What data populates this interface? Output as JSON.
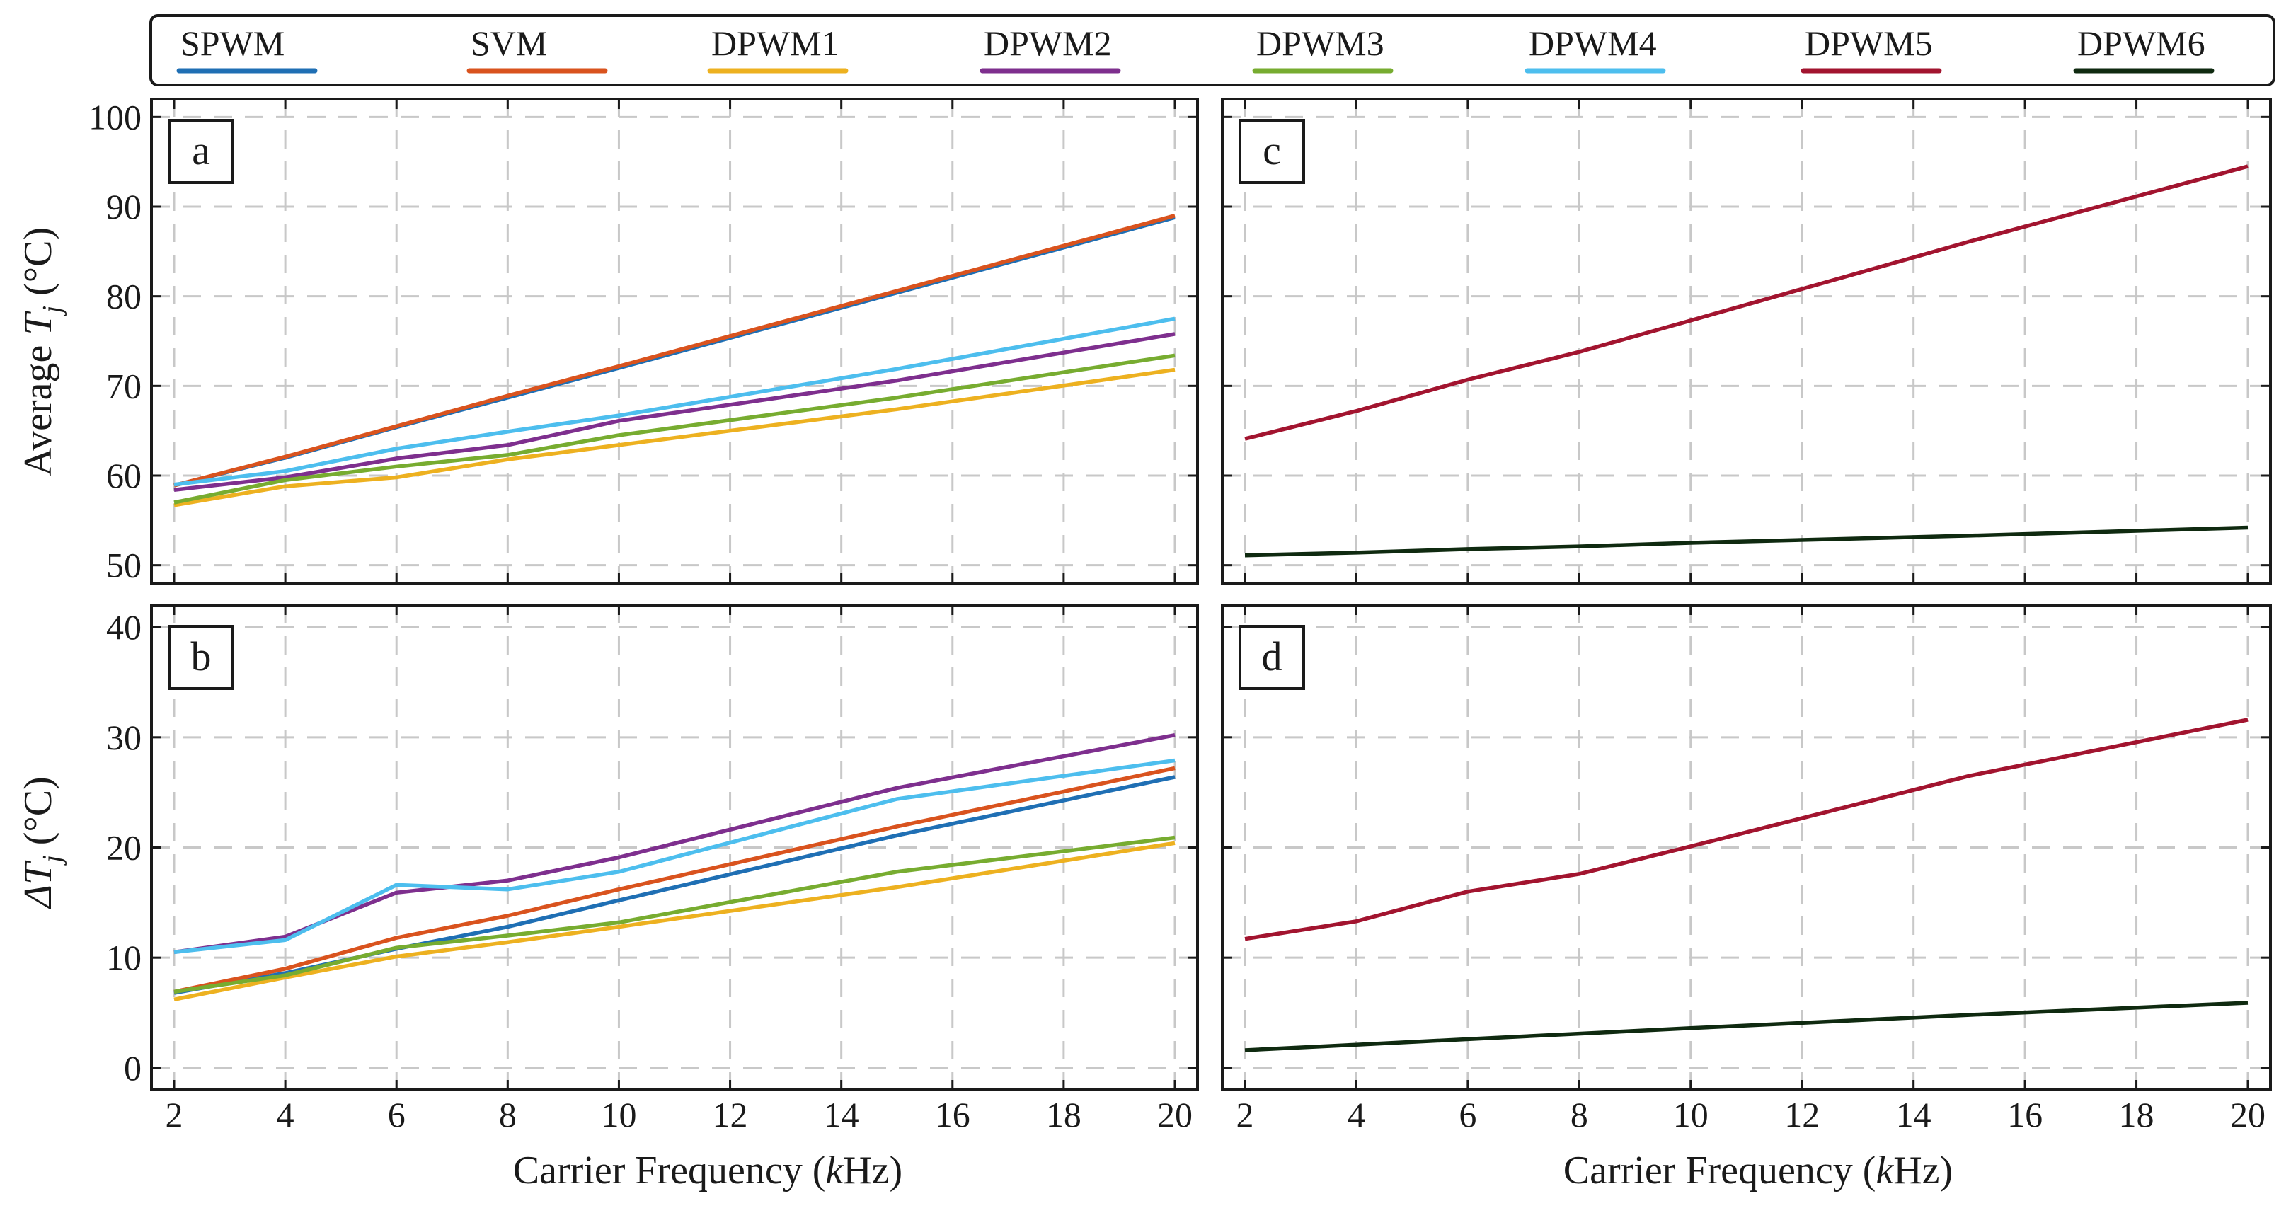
{
  "legend": [
    {
      "name": "SPWM",
      "color": "#1f6fb4"
    },
    {
      "name": "SVM",
      "color": "#d9531e"
    },
    {
      "name": "DPWM1",
      "color": "#edb120"
    },
    {
      "name": "DPWM2",
      "color": "#7e2f8e"
    },
    {
      "name": "DPWM3",
      "color": "#77ac30"
    },
    {
      "name": "DPWM4",
      "color": "#4dbeee"
    },
    {
      "name": "DPWM5",
      "color": "#a2142f"
    },
    {
      "name": "DPWM6",
      "color": "#0f2a10"
    }
  ],
  "labels": {
    "ylabel_top": "Average T_j (°C)",
    "ylabel_bottom": "ΔT_j (°C)",
    "xlabel": "Carrier Frequency (kHz)"
  },
  "chart_data": [
    {
      "panel": "a",
      "type": "line",
      "xlim": [
        2,
        20
      ],
      "ylim": [
        48,
        102
      ],
      "xticks": [
        2,
        4,
        6,
        8,
        10,
        12,
        14,
        16,
        18,
        20
      ],
      "yticks": [
        50,
        60,
        70,
        80,
        90,
        100
      ],
      "grid": true,
      "x": [
        2,
        4,
        6,
        8,
        10,
        15,
        20
      ],
      "series": [
        {
          "name": "SPWM",
          "values": [
            58.9,
            62.0,
            65.4,
            68.7,
            72.0,
            80.4,
            88.8
          ]
        },
        {
          "name": "SVM",
          "values": [
            58.9,
            62.1,
            65.5,
            68.9,
            72.2,
            80.6,
            89.0
          ]
        },
        {
          "name": "DPWM1",
          "values": [
            56.7,
            58.8,
            59.8,
            61.8,
            63.4,
            67.4,
            71.8
          ]
        },
        {
          "name": "DPWM2",
          "values": [
            58.4,
            59.8,
            61.9,
            63.4,
            66.1,
            70.6,
            75.8
          ]
        },
        {
          "name": "DPWM3",
          "values": [
            57.0,
            59.5,
            61.0,
            62.3,
            64.5,
            68.7,
            73.4
          ]
        },
        {
          "name": "DPWM4",
          "values": [
            59.0,
            60.5,
            63.0,
            64.9,
            66.7,
            71.9,
            77.5
          ]
        }
      ]
    },
    {
      "panel": "b",
      "type": "line",
      "xlim": [
        2,
        20
      ],
      "ylim": [
        -2,
        42
      ],
      "xticks": [
        2,
        4,
        6,
        8,
        10,
        12,
        14,
        16,
        18,
        20
      ],
      "yticks": [
        0,
        10,
        20,
        30,
        40
      ],
      "grid": true,
      "x": [
        2,
        4,
        6,
        8,
        10,
        15,
        20
      ],
      "series": [
        {
          "name": "SPWM",
          "values": [
            6.8,
            8.6,
            10.8,
            12.8,
            15.2,
            21.1,
            26.4
          ]
        },
        {
          "name": "SVM",
          "values": [
            6.9,
            9.0,
            11.8,
            13.8,
            16.2,
            21.9,
            27.2
          ]
        },
        {
          "name": "DPWM1",
          "values": [
            6.2,
            8.2,
            10.1,
            11.4,
            12.8,
            16.4,
            20.4
          ]
        },
        {
          "name": "DPWM2",
          "values": [
            10.5,
            11.9,
            15.9,
            17.0,
            19.1,
            25.4,
            30.2
          ]
        },
        {
          "name": "DPWM3",
          "values": [
            6.9,
            8.4,
            10.9,
            12.0,
            13.2,
            17.8,
            20.9
          ]
        },
        {
          "name": "DPWM4",
          "values": [
            10.5,
            11.6,
            16.6,
            16.2,
            17.8,
            24.4,
            27.9
          ]
        }
      ]
    },
    {
      "panel": "c",
      "type": "line",
      "xlim": [
        2,
        20
      ],
      "ylim": [
        48,
        102
      ],
      "xticks": [
        2,
        4,
        6,
        8,
        10,
        12,
        14,
        16,
        18,
        20
      ],
      "grid": true,
      "x": [
        2,
        4,
        6,
        8,
        10,
        15,
        20
      ],
      "series": [
        {
          "name": "DPWM5",
          "values": [
            64.1,
            67.2,
            70.7,
            73.8,
            77.3,
            86.1,
            94.5
          ]
        },
        {
          "name": "DPWM6",
          "values": [
            51.1,
            51.4,
            51.8,
            52.1,
            52.5,
            53.3,
            54.2
          ]
        }
      ]
    },
    {
      "panel": "d",
      "type": "line",
      "xlim": [
        2,
        20
      ],
      "ylim": [
        -2,
        42
      ],
      "xticks": [
        2,
        4,
        6,
        8,
        10,
        12,
        14,
        16,
        18,
        20
      ],
      "grid": true,
      "x": [
        2,
        4,
        6,
        8,
        10,
        15,
        20
      ],
      "series": [
        {
          "name": "DPWM5",
          "values": [
            11.7,
            13.3,
            16.0,
            17.6,
            20.1,
            26.5,
            31.6
          ]
        },
        {
          "name": "DPWM6",
          "values": [
            1.6,
            2.1,
            2.6,
            3.1,
            3.6,
            4.8,
            5.9
          ]
        }
      ]
    }
  ]
}
